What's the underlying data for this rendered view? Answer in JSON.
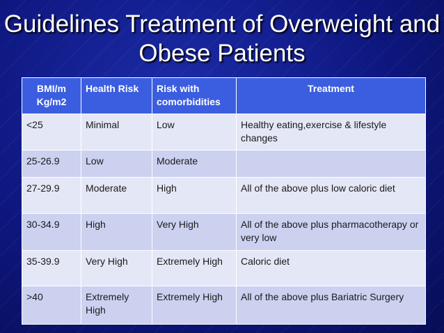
{
  "title": "Guidelines  Treatment of Overweight and Obese Patients",
  "table": {
    "header": [
      "BMI/m Kg/m2",
      "Health Risk",
      "Risk with comorbidities",
      "Treatment"
    ],
    "rows": [
      [
        "<25",
        "Minimal",
        "Low",
        "Healthy eating,exercise & lifestyle changes"
      ],
      [
        "25-26.9",
        "Low",
        "Moderate"
      ],
      [
        "27-29.9",
        "Moderate",
        "High",
        "All of the above plus low caloric diet"
      ],
      [
        "30-34.9",
        "High",
        "Very High",
        "All of the above plus pharmacotherapy or very low"
      ],
      [
        "35-39.9",
        "Very High",
        "Extremely High",
        "Caloric diet"
      ],
      [
        ">40",
        "Extremely High",
        "Extremely High",
        "All of the above plus Bariatric Surgery"
      ]
    ]
  }
}
